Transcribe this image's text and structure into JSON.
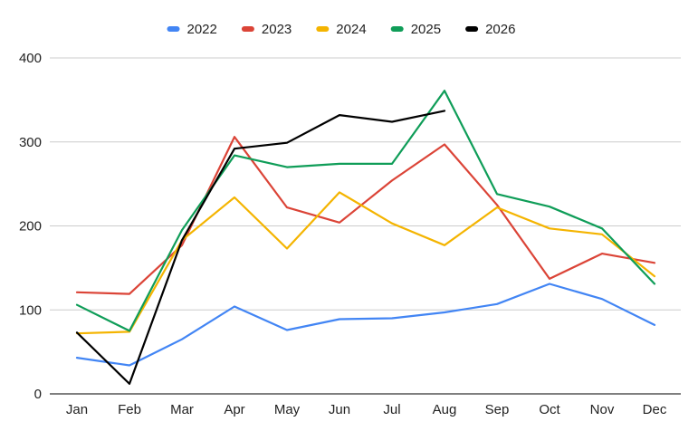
{
  "chart_data": {
    "type": "line",
    "title": "",
    "xlabel": "",
    "ylabel": "",
    "categories": [
      "Jan",
      "Feb",
      "Mar",
      "Apr",
      "May",
      "Jun",
      "Jul",
      "Aug",
      "Sep",
      "Oct",
      "Nov",
      "Dec"
    ],
    "ylim": [
      0,
      400
    ],
    "yticks": [
      "0",
      "100",
      "200",
      "300",
      "400"
    ],
    "grid": true,
    "legend": "top",
    "series": [
      {
        "name": "2022",
        "color": "#4285f4",
        "values": [
          43,
          34,
          65,
          104,
          76,
          89,
          90,
          97,
          107,
          131,
          113,
          82
        ]
      },
      {
        "name": "2023",
        "color": "#db4437",
        "values": [
          121,
          119,
          177,
          306,
          222,
          204,
          254,
          297,
          225,
          137,
          167,
          156
        ]
      },
      {
        "name": "2024",
        "color": "#f4b400",
        "values": [
          72,
          74,
          183,
          234,
          173,
          240,
          203,
          177,
          222,
          197,
          190,
          140
        ]
      },
      {
        "name": "2025",
        "color": "#0f9d58",
        "values": [
          106,
          75,
          195,
          284,
          270,
          274,
          274,
          361,
          238,
          223,
          197,
          131
        ]
      },
      {
        "name": "2026",
        "color": "#000000",
        "values": [
          73,
          12,
          183,
          292,
          299,
          332,
          324,
          337,
          null,
          null,
          null,
          null
        ]
      }
    ]
  }
}
